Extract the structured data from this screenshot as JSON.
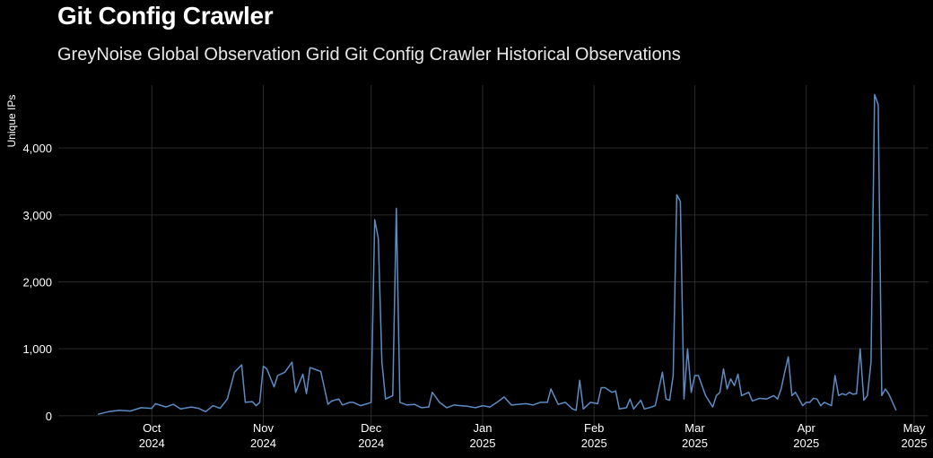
{
  "chart_data": {
    "type": "line",
    "title": "Git Config Crawler",
    "subtitle": "GreyNoise Global Observation Grid Git Config Crawler Historical Observations",
    "xlabel": "",
    "ylabel": "Unique IPs",
    "xlim": [
      "2024-09-05",
      "2025-05-05"
    ],
    "ylim": [
      -190,
      4940
    ],
    "grid": true,
    "line_color": "#5b8cc4",
    "background": "#000000",
    "yticks": [
      {
        "value": 0,
        "label": "0"
      },
      {
        "value": 1000,
        "label": "1,000"
      },
      {
        "value": 2000,
        "label": "2,000"
      },
      {
        "value": 3000,
        "label": "3,000"
      },
      {
        "value": 4000,
        "label": "4,000"
      }
    ],
    "xticks": [
      {
        "date": "2024-10-01",
        "month": "Oct",
        "year": "2024"
      },
      {
        "date": "2024-11-01",
        "month": "Nov",
        "year": "2024"
      },
      {
        "date": "2024-12-01",
        "month": "Dec",
        "year": "2024"
      },
      {
        "date": "2025-01-01",
        "month": "Jan",
        "year": "2025"
      },
      {
        "date": "2025-02-01",
        "month": "Feb",
        "year": "2025"
      },
      {
        "date": "2025-03-01",
        "month": "Mar",
        "year": "2025"
      },
      {
        "date": "2025-04-01",
        "month": "Apr",
        "year": "2025"
      },
      {
        "date": "2025-05-01",
        "month": "May",
        "year": "2025"
      }
    ],
    "points": [
      [
        "2024-09-16",
        20
      ],
      [
        "2024-09-19",
        60
      ],
      [
        "2024-09-22",
        80
      ],
      [
        "2024-09-25",
        70
      ],
      [
        "2024-09-28",
        120
      ],
      [
        "2024-10-01",
        110
      ],
      [
        "2024-10-02",
        180
      ],
      [
        "2024-10-05",
        130
      ],
      [
        "2024-10-07",
        170
      ],
      [
        "2024-10-09",
        100
      ],
      [
        "2024-10-12",
        130
      ],
      [
        "2024-10-14",
        110
      ],
      [
        "2024-10-16",
        60
      ],
      [
        "2024-10-18",
        150
      ],
      [
        "2024-10-20",
        110
      ],
      [
        "2024-10-22",
        250
      ],
      [
        "2024-10-24",
        650
      ],
      [
        "2024-10-26",
        760
      ],
      [
        "2024-10-27",
        200
      ],
      [
        "2024-10-29",
        210
      ],
      [
        "2024-10-30",
        150
      ],
      [
        "2024-10-31",
        200
      ],
      [
        "2024-11-01",
        740
      ],
      [
        "2024-11-02",
        700
      ],
      [
        "2024-11-04",
        430
      ],
      [
        "2024-11-05",
        600
      ],
      [
        "2024-11-07",
        650
      ],
      [
        "2024-11-09",
        800
      ],
      [
        "2024-11-10",
        350
      ],
      [
        "2024-11-12",
        620
      ],
      [
        "2024-11-13",
        330
      ],
      [
        "2024-11-14",
        720
      ],
      [
        "2024-11-16",
        680
      ],
      [
        "2024-11-17",
        660
      ],
      [
        "2024-11-19",
        170
      ],
      [
        "2024-11-20",
        220
      ],
      [
        "2024-11-22",
        250
      ],
      [
        "2024-11-23",
        160
      ],
      [
        "2024-11-25",
        200
      ],
      [
        "2024-11-26",
        200
      ],
      [
        "2024-11-28",
        150
      ],
      [
        "2024-11-30",
        180
      ],
      [
        "2024-12-01",
        200
      ],
      [
        "2024-12-02",
        2930
      ],
      [
        "2024-12-03",
        2650
      ],
      [
        "2024-12-04",
        800
      ],
      [
        "2024-12-05",
        250
      ],
      [
        "2024-12-07",
        300
      ],
      [
        "2024-12-08",
        3100
      ],
      [
        "2024-12-09",
        200
      ],
      [
        "2024-12-11",
        160
      ],
      [
        "2024-12-13",
        170
      ],
      [
        "2024-12-15",
        120
      ],
      [
        "2024-12-17",
        130
      ],
      [
        "2024-12-18",
        350
      ],
      [
        "2024-12-20",
        200
      ],
      [
        "2024-12-22",
        120
      ],
      [
        "2024-12-24",
        160
      ],
      [
        "2024-12-26",
        150
      ],
      [
        "2024-12-28",
        140
      ],
      [
        "2024-12-30",
        120
      ],
      [
        "2025-01-01",
        150
      ],
      [
        "2025-01-03",
        130
      ],
      [
        "2025-01-05",
        200
      ],
      [
        "2025-01-07",
        280
      ],
      [
        "2025-01-09",
        160
      ],
      [
        "2025-01-11",
        170
      ],
      [
        "2025-01-13",
        180
      ],
      [
        "2025-01-15",
        160
      ],
      [
        "2025-01-17",
        200
      ],
      [
        "2025-01-19",
        200
      ],
      [
        "2025-01-20",
        400
      ],
      [
        "2025-01-22",
        170
      ],
      [
        "2025-01-24",
        200
      ],
      [
        "2025-01-26",
        100
      ],
      [
        "2025-01-27",
        80
      ],
      [
        "2025-01-28",
        530
      ],
      [
        "2025-01-29",
        100
      ],
      [
        "2025-01-31",
        200
      ],
      [
        "2025-02-02",
        180
      ],
      [
        "2025-02-03",
        420
      ],
      [
        "2025-02-04",
        420
      ],
      [
        "2025-02-06",
        350
      ],
      [
        "2025-02-07",
        370
      ],
      [
        "2025-02-08",
        100
      ],
      [
        "2025-02-10",
        120
      ],
      [
        "2025-02-11",
        250
      ],
      [
        "2025-02-12",
        100
      ],
      [
        "2025-02-14",
        230
      ],
      [
        "2025-02-15",
        100
      ],
      [
        "2025-02-17",
        130
      ],
      [
        "2025-02-18",
        150
      ],
      [
        "2025-02-19",
        400
      ],
      [
        "2025-02-20",
        650
      ],
      [
        "2025-02-21",
        250
      ],
      [
        "2025-02-22",
        230
      ],
      [
        "2025-02-23",
        600
      ],
      [
        "2025-02-24",
        3300
      ],
      [
        "2025-02-25",
        3200
      ],
      [
        "2025-02-26",
        250
      ],
      [
        "2025-02-27",
        1000
      ],
      [
        "2025-02-28",
        350
      ],
      [
        "2025-03-01",
        600
      ],
      [
        "2025-03-02",
        600
      ],
      [
        "2025-03-04",
        300
      ],
      [
        "2025-03-06",
        130
      ],
      [
        "2025-03-07",
        300
      ],
      [
        "2025-03-08",
        350
      ],
      [
        "2025-03-09",
        700
      ],
      [
        "2025-03-10",
        400
      ],
      [
        "2025-03-11",
        550
      ],
      [
        "2025-03-12",
        450
      ],
      [
        "2025-03-13",
        620
      ],
      [
        "2025-03-14",
        300
      ],
      [
        "2025-03-16",
        350
      ],
      [
        "2025-03-17",
        220
      ],
      [
        "2025-03-19",
        260
      ],
      [
        "2025-03-21",
        250
      ],
      [
        "2025-03-23",
        300
      ],
      [
        "2025-03-24",
        250
      ],
      [
        "2025-03-25",
        400
      ],
      [
        "2025-03-26",
        650
      ],
      [
        "2025-03-27",
        880
      ],
      [
        "2025-03-28",
        300
      ],
      [
        "2025-03-29",
        350
      ],
      [
        "2025-03-31",
        150
      ],
      [
        "2025-04-01",
        200
      ],
      [
        "2025-04-02",
        200
      ],
      [
        "2025-04-03",
        260
      ],
      [
        "2025-04-04",
        250
      ],
      [
        "2025-04-05",
        150
      ],
      [
        "2025-04-06",
        200
      ],
      [
        "2025-04-08",
        150
      ],
      [
        "2025-04-09",
        600
      ],
      [
        "2025-04-10",
        300
      ],
      [
        "2025-04-11",
        330
      ],
      [
        "2025-04-12",
        310
      ],
      [
        "2025-04-13",
        350
      ],
      [
        "2025-04-14",
        320
      ],
      [
        "2025-04-15",
        330
      ],
      [
        "2025-04-16",
        1000
      ],
      [
        "2025-04-17",
        230
      ],
      [
        "2025-04-18",
        300
      ],
      [
        "2025-04-19",
        800
      ],
      [
        "2025-04-20",
        4800
      ],
      [
        "2025-04-21",
        4650
      ],
      [
        "2025-04-22",
        300
      ],
      [
        "2025-04-23",
        400
      ],
      [
        "2025-04-24",
        320
      ],
      [
        "2025-04-26",
        80
      ]
    ]
  }
}
